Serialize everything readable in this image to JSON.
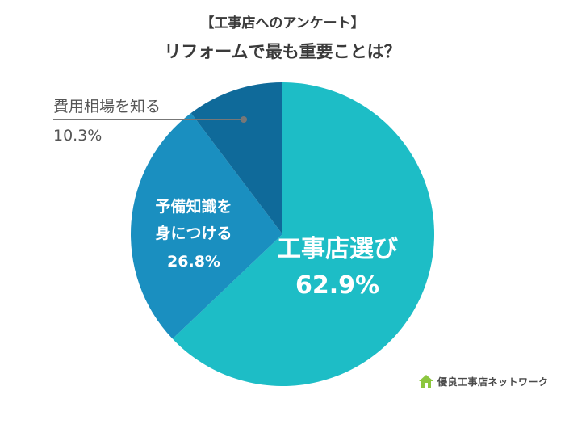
{
  "title_line1": "【工事店へのアンケート】",
  "title_line2": "リフォームで最も重要ことは？",
  "chart_data": {
    "type": "pie",
    "slices": [
      {
        "label_lines": [
          "工事店選び"
        ],
        "value": 62.9,
        "value_text": "62.9%",
        "color": "#1dbdc6"
      },
      {
        "label_lines": [
          "予備知識を",
          "身につける"
        ],
        "value": 26.8,
        "value_text": "26.8%",
        "color": "#1a8fc0"
      },
      {
        "label_lines": [
          "費用相場を知る"
        ],
        "value": 10.3,
        "value_text": "10.3%",
        "color": "#0f6a9a"
      }
    ],
    "start": "12 o'clock",
    "direction": "clockwise"
  },
  "logo": {
    "text": "優良工事店ネットワーク",
    "icon": "house-logo-icon",
    "accent": "#8cc63f"
  }
}
